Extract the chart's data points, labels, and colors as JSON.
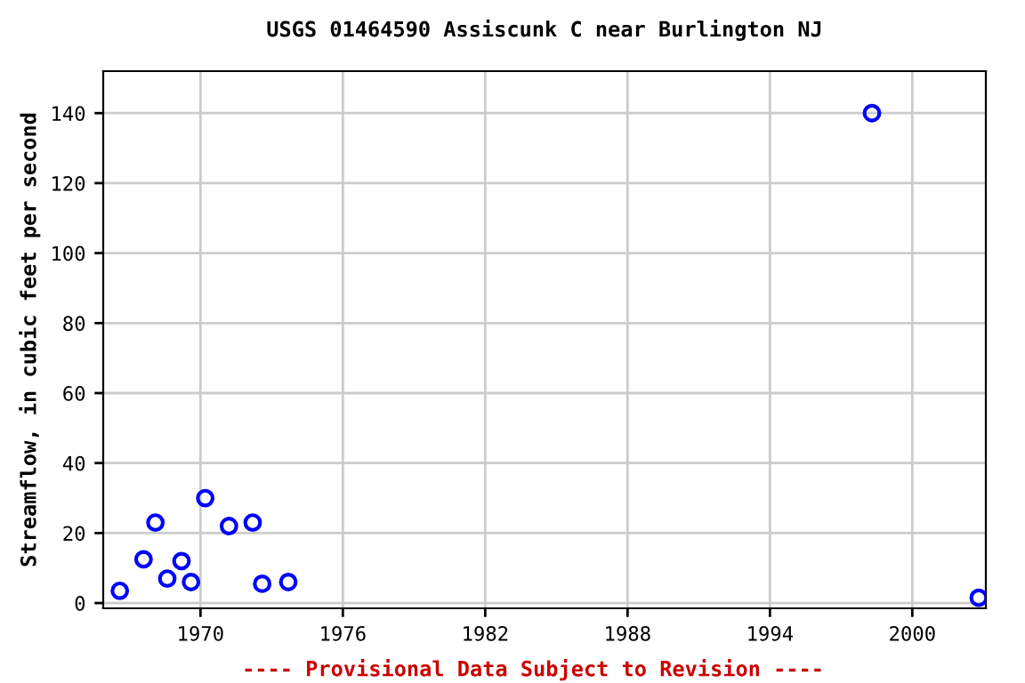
{
  "chart_data": {
    "type": "scatter",
    "title": "USGS 01464590 Assiscunk C near Burlington NJ",
    "ylabel": "Streamflow, in cubic feet per second",
    "annotations": [
      "---- Provisional Data Subject to Revision ----"
    ],
    "x": [
      1966.6,
      1967.6,
      1968.1,
      1968.6,
      1969.2,
      1969.6,
      1970.2,
      1971.2,
      1972.2,
      1972.6,
      1973.7,
      1998.3,
      2002.8
    ],
    "series": [
      {
        "color": "#0000ff",
        "values": [
          3.5,
          12.5,
          23,
          7,
          12,
          6,
          30,
          22,
          23,
          5.5,
          6,
          140,
          1.5
        ]
      }
    ],
    "xlim": [
      1965.9,
      2003.1
    ],
    "xticks": [
      1970,
      1976,
      1982,
      1988,
      1994,
      2000
    ],
    "ylim": [
      -1.5,
      152
    ],
    "yticks": [
      0,
      20,
      40,
      60,
      80,
      100,
      120,
      140
    ],
    "grid": true,
    "marker": "circle"
  }
}
